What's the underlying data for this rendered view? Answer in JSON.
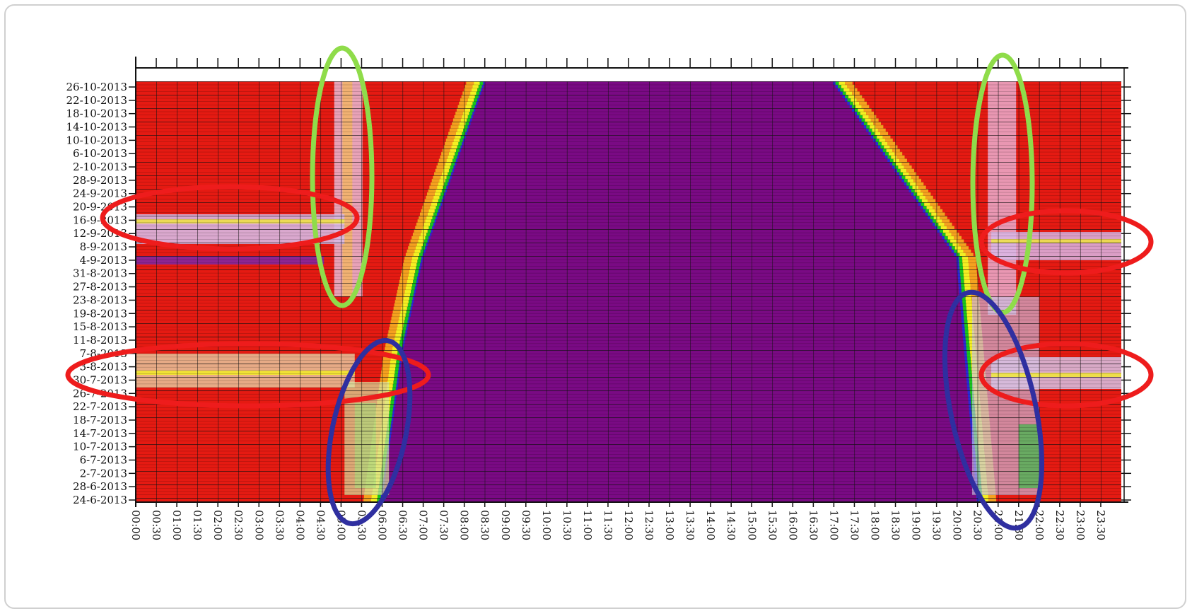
{
  "chart_data": {
    "type": "heatmap",
    "title": "",
    "xlabel": "",
    "ylabel": "",
    "x_ticks": [
      "00:00",
      "00:30",
      "01:00",
      "01:30",
      "02:00",
      "02:30",
      "03:00",
      "03:30",
      "04:00",
      "04:30",
      "05:00",
      "05:30",
      "06:00",
      "06:30",
      "07:00",
      "07:30",
      "08:00",
      "08:30",
      "09:00",
      "09:30",
      "10:00",
      "10:30",
      "11:00",
      "11:30",
      "12:00",
      "12:30",
      "13:00",
      "13:30",
      "14:00",
      "14:30",
      "15:00",
      "15:30",
      "16:00",
      "16:30",
      "17:00",
      "17:30",
      "18:00",
      "18:30",
      "19:00",
      "19:30",
      "20:00",
      "20:30",
      "21:00",
      "21:30",
      "22:00",
      "22:30",
      "23:00",
      "23:30"
    ],
    "y_ticks": [
      "26-10-2013",
      "22-10-2013",
      "18-10-2013",
      "14-10-2013",
      "10-10-2013",
      "6-10-2013",
      "2-10-2013",
      "28-9-2013",
      "24-9-2013",
      "20-9-2013",
      "16-9-2013",
      "12-9-2013",
      "8-9-2013",
      "4-9-2013",
      "31-8-2013",
      "27-8-2013",
      "23-8-2013",
      "19-8-2013",
      "15-8-2013",
      "11-8-2013",
      "7-8-2013",
      "3-8-2013",
      "30-7-2013",
      "26-7-2013",
      "22-7-2013",
      "18-7-2013",
      "14-7-2013",
      "10-7-2013",
      "6-7-2013",
      "2-7-2013",
      "28-6-2013",
      "24-6-2013"
    ],
    "day_count": 125,
    "color_scale": [
      "#7a0a84",
      "#2b2bd6",
      "#19c51e",
      "#f4ef22",
      "#f5a11f",
      "#e51a12"
    ],
    "sunrise_at": [
      {
        "date": "24-6-2013",
        "time": "06:00"
      },
      {
        "date": "7-8-2013",
        "time": "06:30"
      },
      {
        "date": "4-9-2013",
        "time": "07:00"
      },
      {
        "date": "26-10-2013",
        "time": "08:30"
      }
    ],
    "sunset_at": [
      {
        "date": "24-6-2013",
        "time": "20:30"
      },
      {
        "date": "4-9-2013",
        "time": "20:00"
      },
      {
        "date": "26-10-2013",
        "time": "17:00"
      }
    ],
    "annotations": [
      {
        "shape": "ellipse",
        "color": "#8fdc4a"
      },
      {
        "shape": "ellipse",
        "color": "#8fdc4a"
      },
      {
        "shape": "ellipse",
        "color": "#ee1c1c"
      },
      {
        "shape": "ellipse",
        "color": "#ee1c1c"
      },
      {
        "shape": "ellipse",
        "color": "#ee1c1c"
      },
      {
        "shape": "ellipse",
        "color": "#ee1c1c"
      },
      {
        "shape": "ellipse",
        "color": "#2f2fa0"
      },
      {
        "shape": "ellipse",
        "color": "#2f2fa0"
      }
    ],
    "grid": true,
    "legend": "none"
  }
}
